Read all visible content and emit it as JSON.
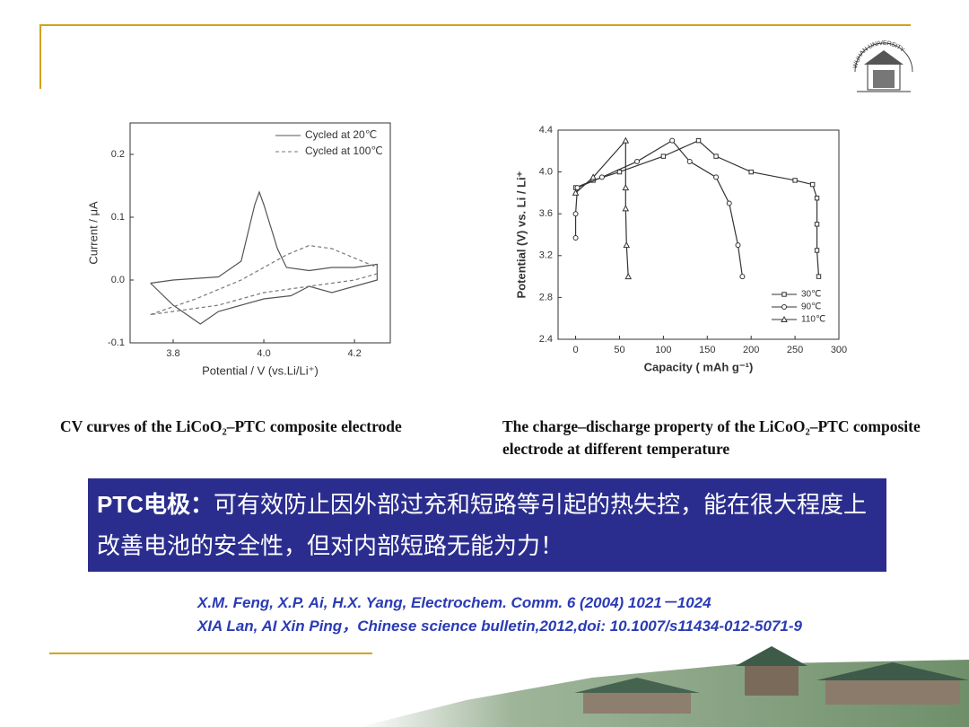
{
  "slide": {
    "logo": "WUHAN UNIVERSITY",
    "caption_left": "CV curves of the LiCoO₂–PTC composite electrode",
    "caption_right": "The charge–discharge property of the LiCoO₂–PTC composite electrode at different temperature",
    "highlight": {
      "label": "PTC电极：",
      "text": "可有效防止因外部过充和短路等引起的热失控，能在很大程度上改善电池的安全性，但对内部短路无能为力！"
    },
    "references": [
      "X.M. Feng, X.P. Ai, H.X. Yang, Electrochem. Comm. 6 (2004) 1021－1024",
      "XIA Lan, AI Xin Ping，Chinese science bulletin,2012,doi: 10.1007/s11434-012-5071-9"
    ]
  },
  "chart_data": [
    {
      "type": "line",
      "x_label": "Potential / V (vs.Li/Li⁺)",
      "y_label": "Current / μA",
      "xlim": [
        3.705,
        4.279
      ],
      "ylim": [
        -0.1,
        0.25
      ],
      "xticks": [
        3.8,
        {
          "value": 4,
          "label": "4.0"
        },
        4.2
      ],
      "yticks": [
        -0.1,
        {
          "value": 0,
          "label": "0.0"
        },
        0.1,
        0.2
      ],
      "legend": "upper right",
      "series": [
        {
          "name": "Cycled at 20℃",
          "color": "#555555",
          "line_style": "solid",
          "x": [
            3.75,
            3.8,
            3.9,
            3.95,
            3.98,
            3.99,
            4.0,
            4.03,
            4.05,
            4.1,
            4.15,
            4.2,
            4.25,
            4.25,
            4.2,
            4.15,
            4.1,
            4.06,
            4.0,
            3.9,
            3.86,
            3.8,
            3.75
          ],
          "values": [
            -0.005,
            0.0,
            0.005,
            0.03,
            0.12,
            0.14,
            0.12,
            0.05,
            0.02,
            0.015,
            0.02,
            0.02,
            0.025,
            0.0,
            -0.01,
            -0.02,
            -0.01,
            -0.025,
            -0.03,
            -0.05,
            -0.07,
            -0.04,
            -0.005
          ]
        },
        {
          "name": "Cycled at 100℃",
          "color": "#777777",
          "line_style": "dashed",
          "x": [
            3.75,
            3.85,
            3.95,
            4.05,
            4.1,
            4.15,
            4.2,
            4.25,
            4.25,
            4.2,
            4.1,
            4.0,
            3.9,
            3.8,
            3.75
          ],
          "values": [
            -0.055,
            -0.03,
            0.0,
            0.04,
            0.055,
            0.05,
            0.035,
            0.02,
            0.01,
            0.0,
            -0.01,
            -0.02,
            -0.04,
            -0.05,
            -0.055
          ]
        }
      ]
    },
    {
      "type": "line",
      "x_label": "Capacity ( mAh g⁻¹)",
      "y_label": "Potential (V) vs. Li / Li⁺",
      "xlim": [
        -20,
        300
      ],
      "ylim": [
        2.4,
        4.4
      ],
      "xticks": [
        0,
        50,
        100,
        150,
        200,
        250,
        300
      ],
      "yticks": [
        2.4,
        2.8,
        3.2,
        3.6,
        {
          "value": 4,
          "label": "4.0"
        },
        4.4
      ],
      "legend": "lower right",
      "series": [
        {
          "name": "30℃",
          "color": "#333333",
          "line_style": "solid",
          "marker": "square",
          "x": [
            0,
            20,
            50,
            100,
            140,
            160,
            200,
            250,
            270,
            275,
            275,
            275,
            277
          ],
          "values": [
            3.85,
            3.92,
            4.0,
            4.15,
            4.3,
            4.15,
            4.0,
            3.92,
            3.88,
            3.75,
            3.5,
            3.25,
            3.0
          ]
        },
        {
          "name": "90℃",
          "color": "#333333",
          "line_style": "solid",
          "marker": "circle",
          "x": [
            0,
            0,
            2,
            30,
            70,
            110,
            130,
            160,
            175,
            185,
            190
          ],
          "values": [
            3.37,
            3.6,
            3.85,
            3.95,
            4.1,
            4.3,
            4.1,
            3.95,
            3.7,
            3.3,
            3.0
          ]
        },
        {
          "name": "110℃",
          "color": "#333333",
          "line_style": "solid",
          "marker": "triangle",
          "x": [
            0,
            20,
            57,
            57,
            57,
            58,
            60
          ],
          "values": [
            3.8,
            3.95,
            4.3,
            3.85,
            3.65,
            3.3,
            3.0
          ]
        }
      ]
    }
  ]
}
